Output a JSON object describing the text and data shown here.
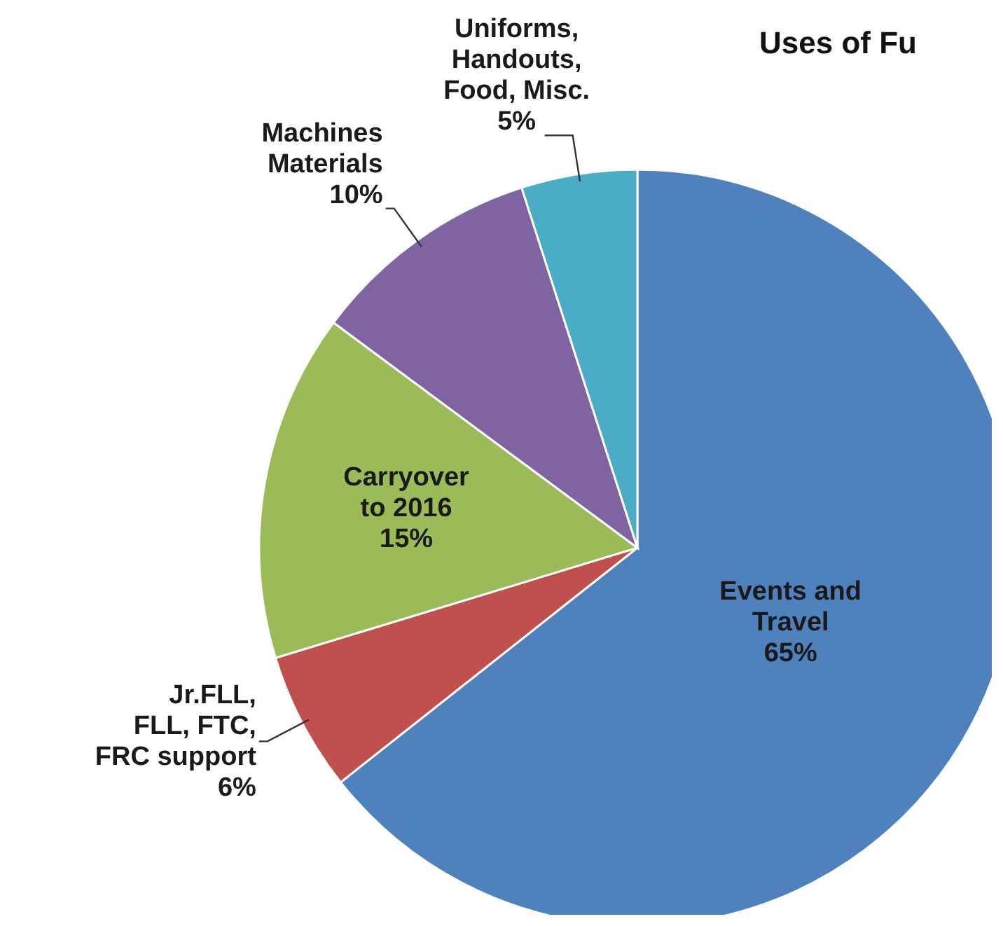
{
  "chart_data": {
    "type": "pie",
    "title": "Uses of Fu",
    "categories": [
      "Events and Travel",
      "Jr.FLL, FLL, FTC, FRC support",
      "Carryover to 2016",
      "Machines Materials",
      "Uniforms, Handouts, Food, Misc."
    ],
    "values": [
      65,
      6,
      15,
      10,
      5
    ],
    "colors": [
      "#4f81bd",
      "#c0504d",
      "#9bbb59",
      "#8064a2",
      "#4bacc6"
    ],
    "value_labels": [
      "65%",
      "6%",
      "15%",
      "10%",
      "5%"
    ]
  }
}
